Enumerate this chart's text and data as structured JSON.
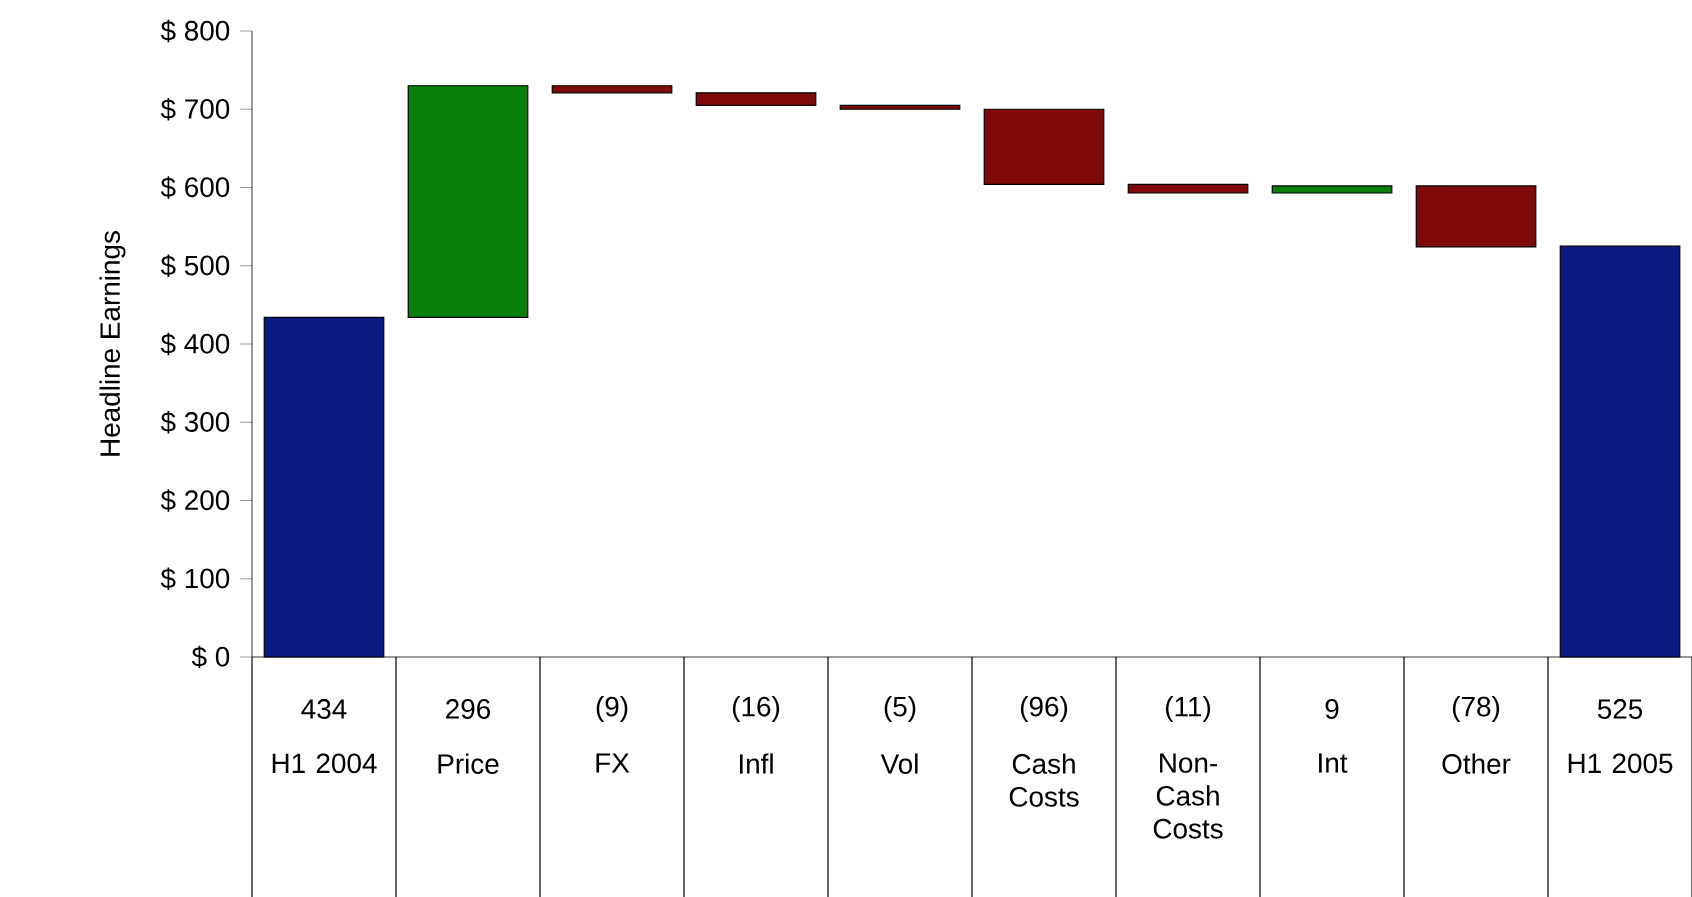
{
  "chart_data": {
    "type": "bar",
    "ylabel": "Headline Earnings",
    "categories": [
      "H1 2004",
      "Price",
      "FX",
      "Infl",
      "Vol",
      "Cash Costs",
      "Non-Cash Costs",
      "Int",
      "Other",
      "H1 2005"
    ],
    "values": [
      434,
      296,
      -9,
      -16,
      -5,
      -96,
      -11,
      9,
      -78,
      525
    ],
    "base": [
      0,
      434,
      730,
      721,
      705,
      700,
      604,
      593,
      602,
      0
    ],
    "value_labels": [
      "434",
      "296",
      "(9)",
      "(16)",
      "(5)",
      "(96)",
      "(11)",
      "9",
      "(78)",
      "525"
    ],
    "colors": [
      "#0a1a80",
      "#0a800a",
      "#800a0a",
      "#800a0a",
      "#800a0a",
      "#800a0a",
      "#800a0a",
      "#0a800a",
      "#800a0a",
      "#0a1a80"
    ],
    "ylim": [
      0,
      800
    ],
    "yticks": [
      {
        "value": 0,
        "label": "$ 0"
      },
      {
        "value": 100,
        "label": "$ 100"
      },
      {
        "value": 200,
        "label": "$ 200"
      },
      {
        "value": 300,
        "label": "$ 300"
      },
      {
        "value": 400,
        "label": "$ 400"
      },
      {
        "value": 500,
        "label": "$ 500"
      },
      {
        "value": 600,
        "label": "$ 600"
      },
      {
        "value": 700,
        "label": "$ 700"
      },
      {
        "value": 800,
        "label": "$ 800"
      }
    ]
  }
}
